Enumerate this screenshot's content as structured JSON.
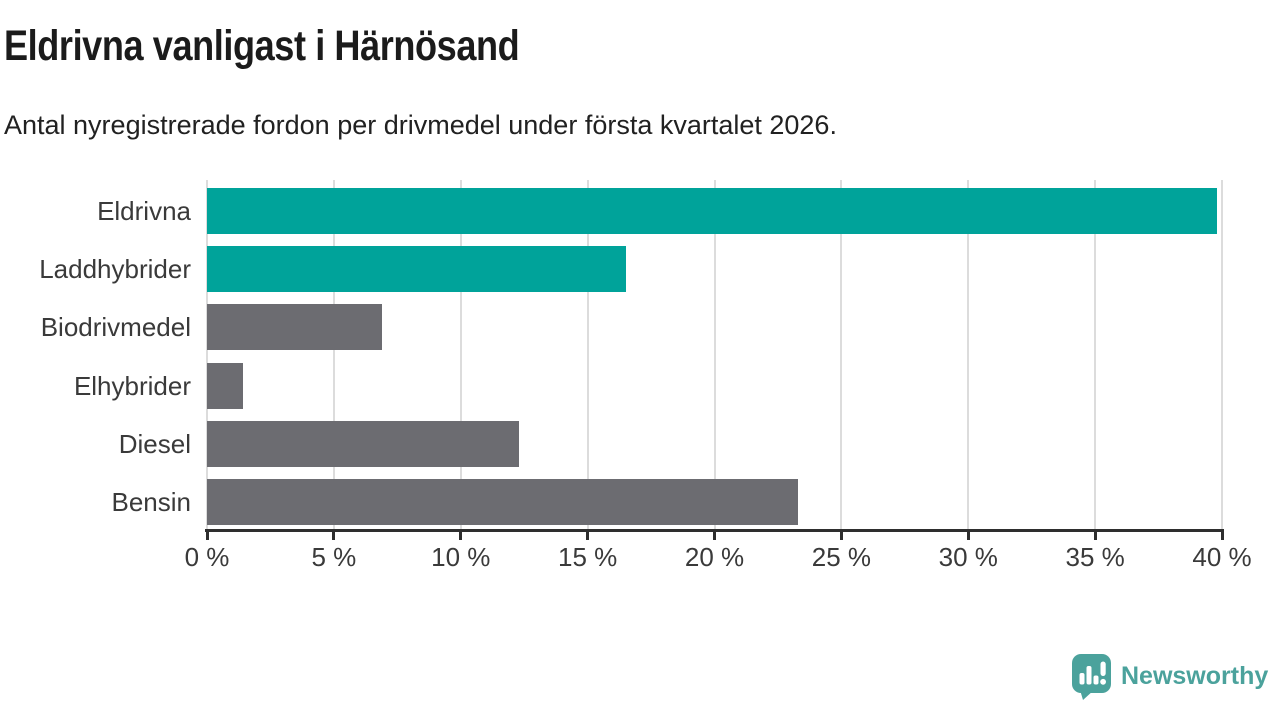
{
  "chart_data": {
    "type": "bar",
    "orientation": "horizontal",
    "title": "Eldrivna vanligast i Härnösand",
    "subtitle": "Antal nyregistrerade fordon per drivmedel under första kvartalet 2026.",
    "categories": [
      "Eldrivna",
      "Laddhybrider",
      "Biodrivmedel",
      "Elhybrider",
      "Diesel",
      "Bensin"
    ],
    "values": [
      39.8,
      16.5,
      6.9,
      1.4,
      12.3,
      23.3
    ],
    "value_unit": "%",
    "xlim": [
      0,
      40
    ],
    "xticks": [
      0,
      5,
      10,
      15,
      20,
      25,
      30,
      35,
      40
    ],
    "xtick_labels": [
      "0 %",
      "5 %",
      "10 %",
      "15 %",
      "20 %",
      "25 %",
      "30 %",
      "35 %",
      "40 %"
    ],
    "bar_colors": [
      "#00a39a",
      "#00a39a",
      "#6c6c71",
      "#6c6c71",
      "#6c6c71",
      "#6c6c71"
    ],
    "series_colors": {
      "highlight": "#00a39a",
      "default": "#6c6c71"
    },
    "grid": true,
    "legend": false
  },
  "footer": {
    "brand": "Newsworthy",
    "brand_color": "#4ba29c"
  },
  "colors": {
    "background": "#ffffff",
    "gridline": "#dcdcdc",
    "axis": "#2e2e2e",
    "title_text": "#1b1b1b",
    "label_text": "#3a3a3a"
  }
}
